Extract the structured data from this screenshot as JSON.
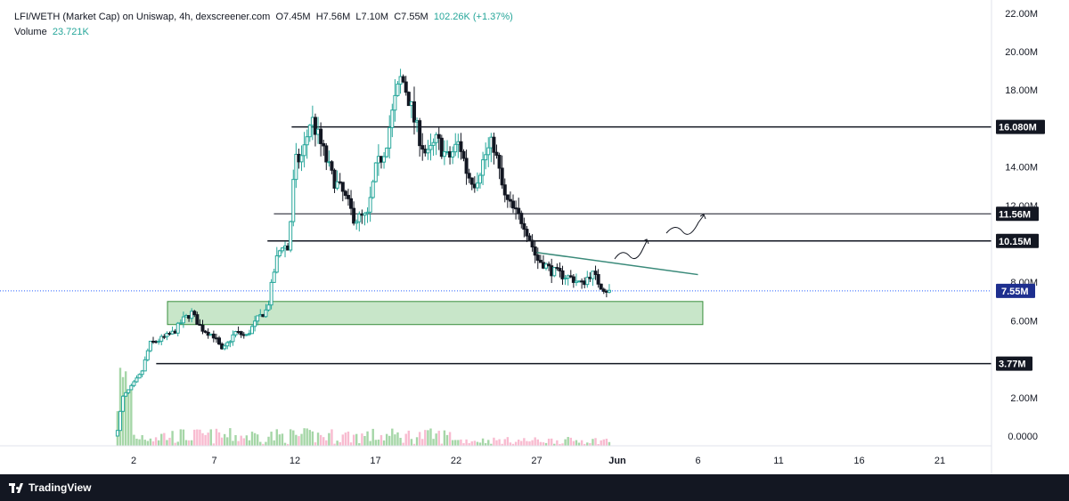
{
  "header": {
    "symbol": "LFI/WETH (Market Cap) on Uniswap, 4h, dexscreener.com",
    "open": "O7.45M",
    "high": "H7.56M",
    "low": "L7.10M",
    "close": "C7.55M",
    "change": "102.26K (+1.37%)",
    "volume_label": "Volume",
    "volume_value": "23.721K"
  },
  "footer": {
    "brand": "TradingView"
  },
  "colors": {
    "up": "#26a69a",
    "down": "#131722",
    "zone_fill": "#c8e6c9",
    "zone_stroke": "#388e3c",
    "price_label": "#1e2f8f",
    "trendline": "#3a8a7a",
    "vol_up": "#a5d6a7",
    "vol_down": "#f8bbd0"
  },
  "chart_data": {
    "type": "candlestick",
    "y_axis": {
      "min": 0,
      "max": 22000000,
      "ticks": [
        "22.00M",
        "20.00M",
        "18.00M",
        "14.00M",
        "12.00M",
        "8.00M",
        "6.00M",
        "2.00M",
        "0.0000"
      ],
      "tick_values": [
        22000000,
        20000000,
        18000000,
        14000000,
        12000000,
        8000000,
        6000000,
        2000000,
        0
      ]
    },
    "x_axis": {
      "ticks": [
        "2",
        "7",
        "12",
        "17",
        "22",
        "27",
        "Jun",
        "6",
        "11",
        "16",
        "21"
      ],
      "tick_days": [
        2,
        7,
        12,
        17,
        22,
        27,
        32,
        37,
        42,
        47,
        52
      ]
    },
    "price_path": [
      [
        1.0,
        0.3
      ],
      [
        1.3,
        2.0
      ],
      [
        1.8,
        2.5
      ],
      [
        2.5,
        3.3
      ],
      [
        3.0,
        4.8
      ],
      [
        3.6,
        5.0
      ],
      [
        4.5,
        5.4
      ],
      [
        5.0,
        6.0
      ],
      [
        5.6,
        6.4
      ],
      [
        6.2,
        5.6
      ],
      [
        7.0,
        5.2
      ],
      [
        7.5,
        4.4
      ],
      [
        8.3,
        5.4
      ],
      [
        9.0,
        5.2
      ],
      [
        9.7,
        6.1
      ],
      [
        10.3,
        6.6
      ],
      [
        10.8,
        9.0
      ],
      [
        11.2,
        10.0
      ],
      [
        11.6,
        9.7
      ],
      [
        12.0,
        14.2
      ],
      [
        12.5,
        14.6
      ],
      [
        13.0,
        16.6
      ],
      [
        13.6,
        15.2
      ],
      [
        14.3,
        13.5
      ],
      [
        15.0,
        12.6
      ],
      [
        15.7,
        11.3
      ],
      [
        16.5,
        11.4
      ],
      [
        17.0,
        13.8
      ],
      [
        17.6,
        15.0
      ],
      [
        18.2,
        17.4
      ],
      [
        18.6,
        18.7
      ],
      [
        19.0,
        17.8
      ],
      [
        19.5,
        16.1
      ],
      [
        20.2,
        14.5
      ],
      [
        20.8,
        15.4
      ],
      [
        21.5,
        14.4
      ],
      [
        22.2,
        15.3
      ],
      [
        22.7,
        13.6
      ],
      [
        23.2,
        13.2
      ],
      [
        23.8,
        14.6
      ],
      [
        24.3,
        15.3
      ],
      [
        25.0,
        12.4
      ],
      [
        25.6,
        11.7
      ],
      [
        26.2,
        11.1
      ],
      [
        26.6,
        10.2
      ],
      [
        27.0,
        9.2
      ],
      [
        27.4,
        9.0
      ],
      [
        27.9,
        8.6
      ],
      [
        28.5,
        8.4
      ],
      [
        29.2,
        8.2
      ],
      [
        29.8,
        7.9
      ],
      [
        30.4,
        8.5
      ],
      [
        31.0,
        7.8
      ],
      [
        31.5,
        7.5
      ]
    ],
    "candle_count": 180,
    "last_price": "7.55M",
    "levels": [
      {
        "label": "16.080M",
        "value": 16080000,
        "x_start_day": 11.8,
        "width": 1.5
      },
      {
        "label": "11.56M",
        "value": 11560000,
        "x_start_day": 10.7,
        "width": 1
      },
      {
        "label": "10.15M",
        "value": 10150000,
        "x_start_day": 10.3,
        "width": 1.5
      },
      {
        "label": "3.77M",
        "value": 3770000,
        "x_start_day": 3.4,
        "width": 1.5
      }
    ],
    "zone": {
      "from_day": 4.1,
      "to_day": 37.3,
      "low": 5800000,
      "high": 7000000
    },
    "trendline": {
      "from": [
        27.0,
        9.55
      ],
      "to": [
        37.0,
        8.4
      ]
    },
    "volume_max": 1.0
  }
}
